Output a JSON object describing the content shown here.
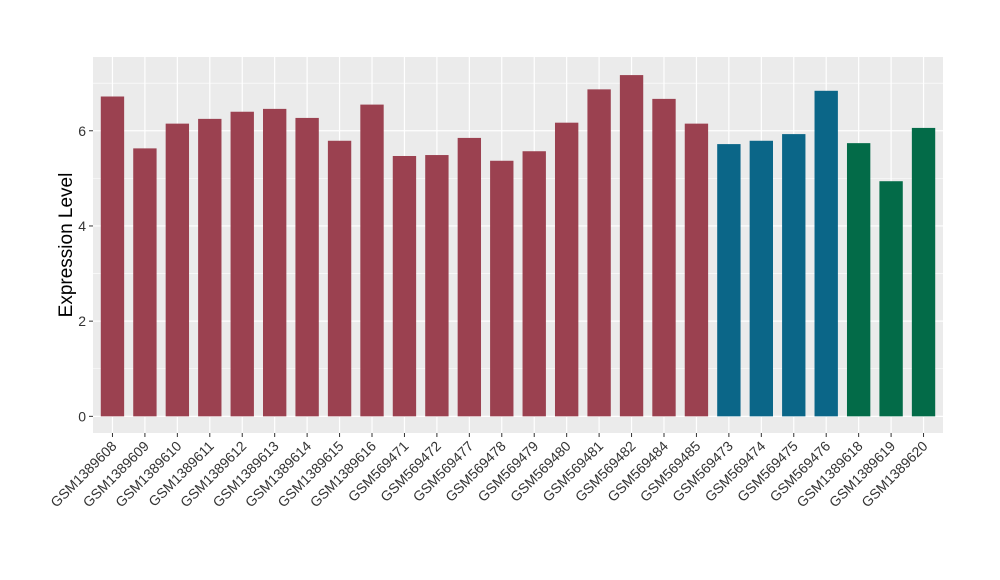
{
  "chart_data": {
    "type": "bar",
    "ylabel": "Expression Level",
    "xlabel": "",
    "title": "",
    "ylim": [
      -0.35,
      7.55
    ],
    "yticks": [
      0,
      2,
      4,
      6
    ],
    "grid": true,
    "legend": "none",
    "categories": [
      "GSM1389608",
      "GSM1389609",
      "GSM1389610",
      "GSM1389611",
      "GSM1389612",
      "GSM1389613",
      "GSM1389614",
      "GSM1389615",
      "GSM1389616",
      "GSM569471",
      "GSM569472",
      "GSM569477",
      "GSM569478",
      "GSM569479",
      "GSM569480",
      "GSM569481",
      "GSM569482",
      "GSM569484",
      "GSM569485",
      "GSM569473",
      "GSM569474",
      "GSM569475",
      "GSM569476",
      "GSM1389618",
      "GSM1389619",
      "GSM1389620"
    ],
    "values": [
      6.72,
      5.63,
      6.15,
      6.25,
      6.4,
      6.46,
      6.27,
      5.79,
      6.55,
      5.47,
      5.49,
      5.85,
      5.37,
      5.57,
      6.17,
      6.87,
      7.17,
      6.67,
      6.15,
      5.72,
      5.79,
      5.93,
      6.84,
      5.74,
      4.94,
      6.06
    ],
    "colors": [
      "#9b4150",
      "#9b4150",
      "#9b4150",
      "#9b4150",
      "#9b4150",
      "#9b4150",
      "#9b4150",
      "#9b4150",
      "#9b4150",
      "#9b4150",
      "#9b4150",
      "#9b4150",
      "#9b4150",
      "#9b4150",
      "#9b4150",
      "#9b4150",
      "#9b4150",
      "#9b4150",
      "#9b4150",
      "#0b6688",
      "#0b6688",
      "#0b6688",
      "#0b6688",
      "#036b48",
      "#036b48",
      "#036b48"
    ],
    "panel_background": "#ebebeb",
    "grid_color": "#ffffff"
  }
}
